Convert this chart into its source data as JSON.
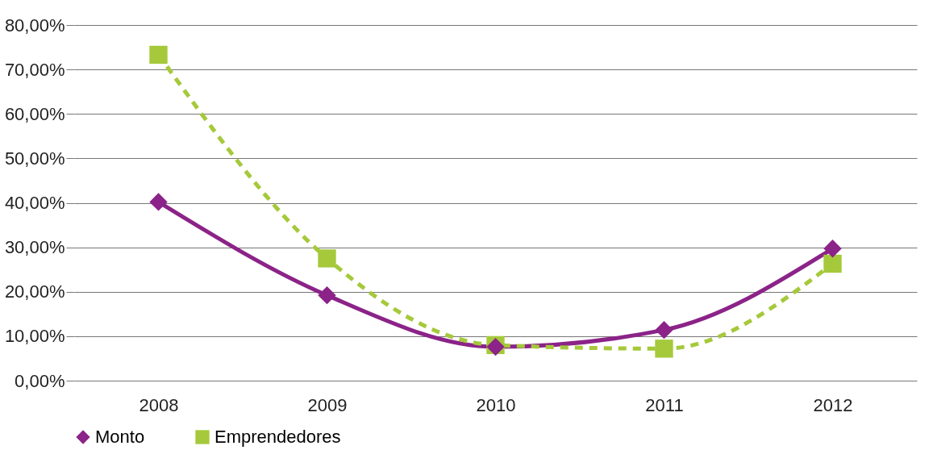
{
  "chart_data": {
    "type": "line",
    "categories": [
      "2008",
      "2009",
      "2010",
      "2011",
      "2012"
    ],
    "series": [
      {
        "name": "Monto",
        "color": "#8b2388",
        "values": [
          40.2,
          19.2,
          7.6,
          11.4,
          29.7
        ],
        "marker": "diamond",
        "line_style": "solid"
      },
      {
        "name": "Emprendedores",
        "color": "#a5c93a",
        "values": [
          73.3,
          27.5,
          8.0,
          7.2,
          26.3
        ],
        "marker": "square",
        "line_style": "dashed"
      }
    ],
    "ylim": [
      0,
      80
    ],
    "yticks": [
      {
        "value": 0,
        "label": "0,00%"
      },
      {
        "value": 10,
        "label": "10,00%"
      },
      {
        "value": 20,
        "label": "20,00%"
      },
      {
        "value": 30,
        "label": "30,00%"
      },
      {
        "value": 40,
        "label": "40,00%"
      },
      {
        "value": 50,
        "label": "50,00%"
      },
      {
        "value": 60,
        "label": "60,00%"
      },
      {
        "value": 70,
        "label": "70,00%"
      },
      {
        "value": 80,
        "label": "80,00%"
      }
    ],
    "grid": "y",
    "legend": "bottom"
  }
}
